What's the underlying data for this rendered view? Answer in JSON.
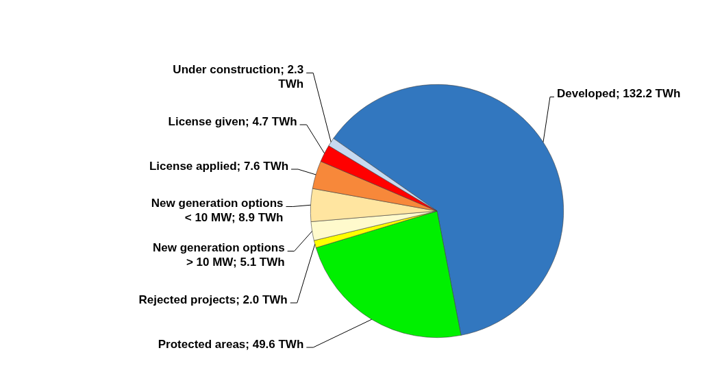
{
  "chart_data": {
    "type": "pie",
    "categories": [
      "Developed",
      "Protected areas",
      "Rejected projects",
      "New generation options > 10 MW",
      "New generation options < 10 MW",
      "License applied",
      "License given",
      "Under construction"
    ],
    "values": [
      132.2,
      49.6,
      2.0,
      5.1,
      8.9,
      7.6,
      4.7,
      2.3
    ],
    "colors": [
      "#3277bf",
      "#00f000",
      "#ffff00",
      "#fffacc",
      "#ffe5a0",
      "#f7883a",
      "#ff0000",
      "#c6d9f0"
    ],
    "value_labels": [
      "132.2 TWh",
      "49.6 TWh",
      "2.0 TWh",
      "5.1 TWh",
      "8.9 TWh",
      "7.6 TWh",
      "4.7 TWh",
      "2.3 TWh"
    ]
  }
}
